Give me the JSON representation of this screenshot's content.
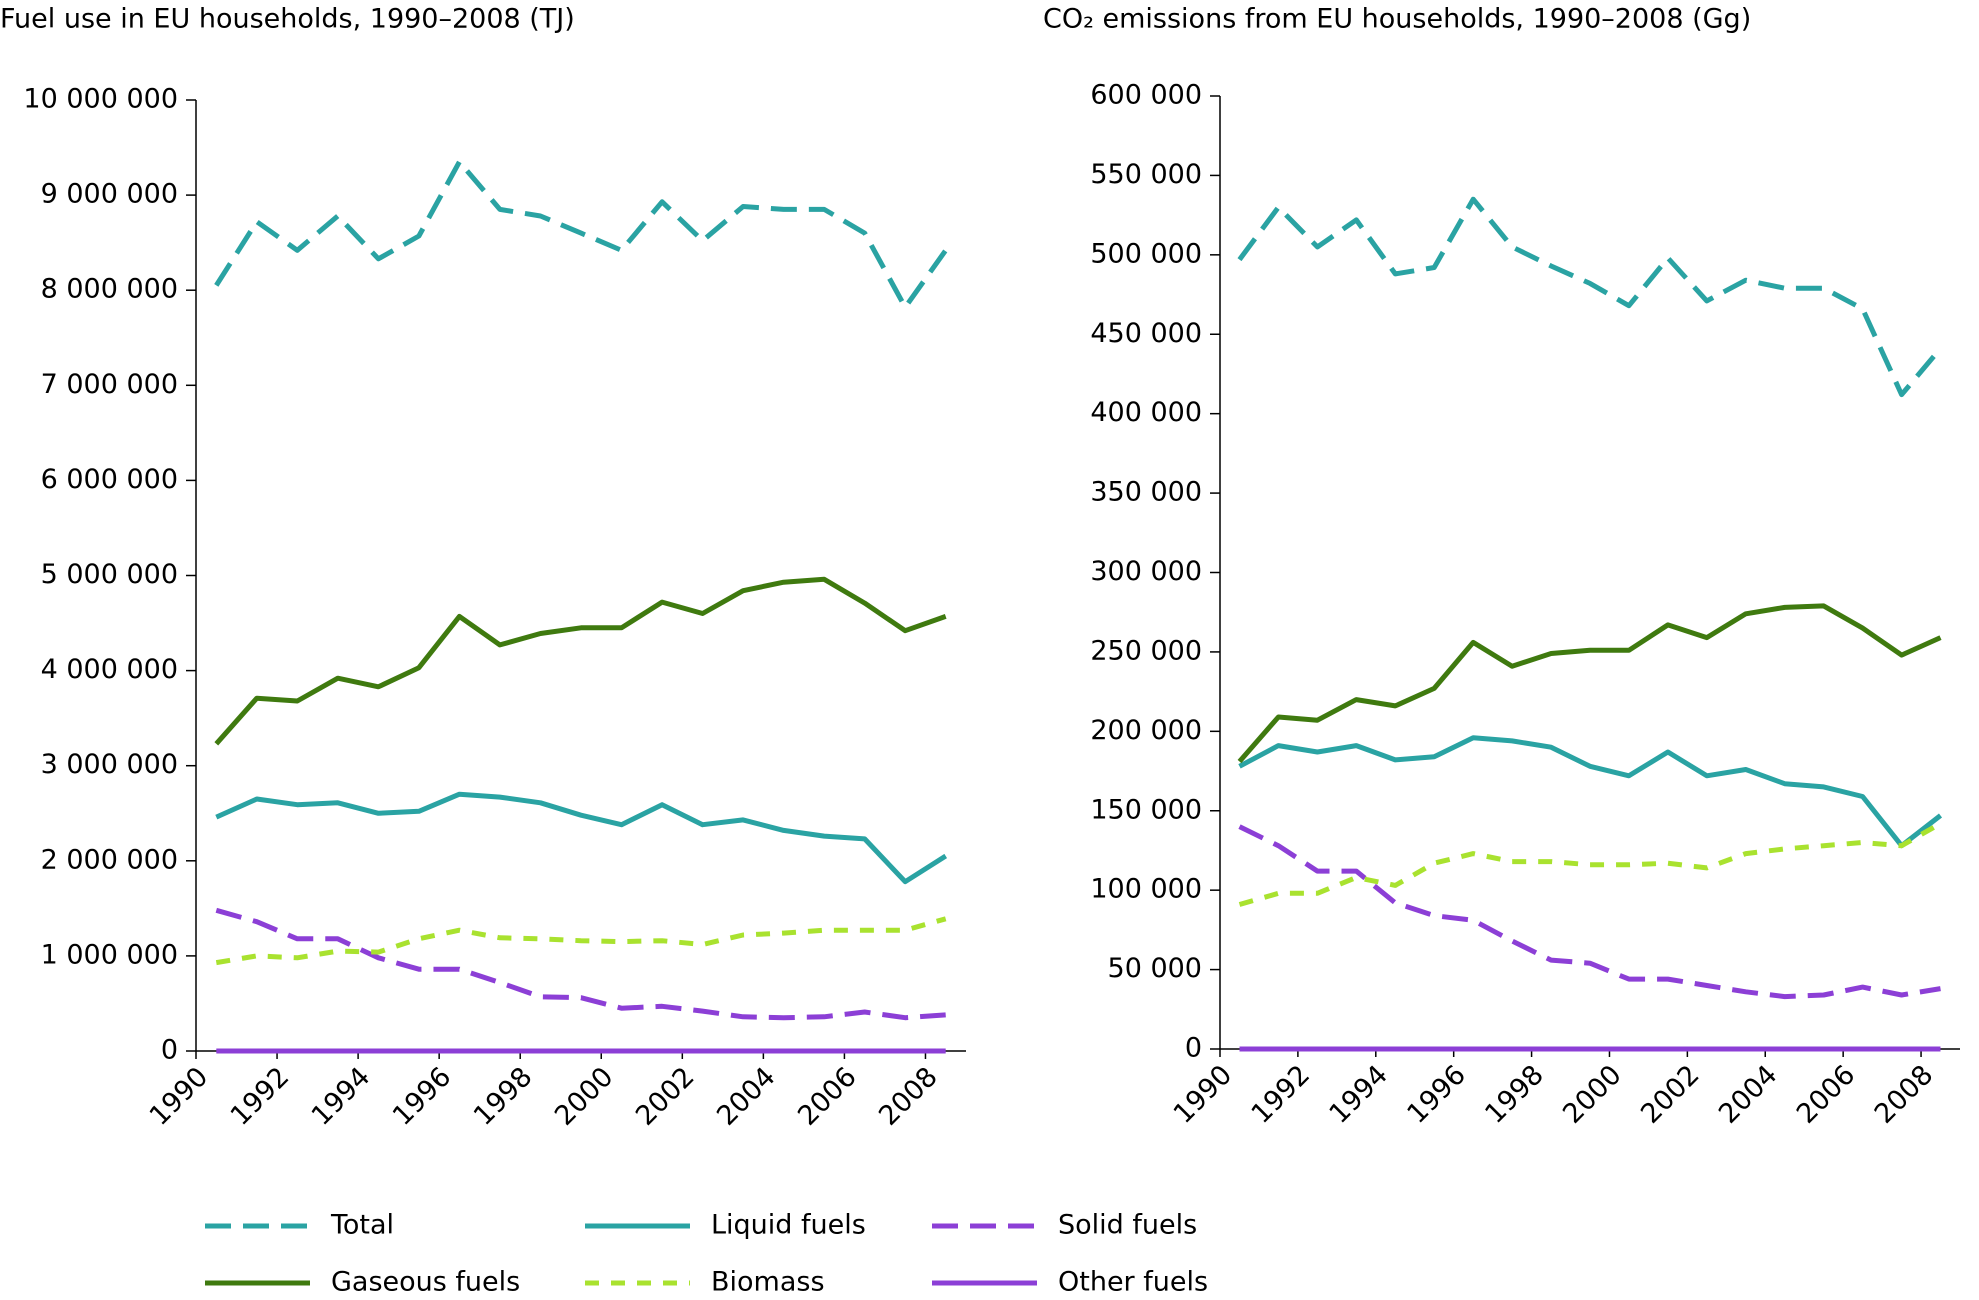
{
  "chart_data": [
    {
      "type": "line",
      "title": "Fuel use in EU households, 1990–2008 (TJ)",
      "categories": [
        "1990",
        null,
        "1992",
        null,
        "1994",
        null,
        "1996",
        null,
        "1998",
        null,
        "2000",
        null,
        "2002",
        null,
        "2004",
        null,
        "2006",
        null,
        "2008"
      ],
      "ylim": [
        0,
        10000000
      ],
      "yticks": [
        0,
        {
          "value": 1000000,
          "label": "1 000 000"
        },
        {
          "value": 2000000,
          "label": "2 000 000"
        },
        {
          "value": 3000000,
          "label": "3 000 000"
        },
        {
          "value": 4000000,
          "label": "4 000 000"
        },
        {
          "value": 5000000,
          "label": "5 000 000"
        },
        {
          "value": 6000000,
          "label": "6 000 000"
        },
        {
          "value": 7000000,
          "label": "7 000 000"
        },
        {
          "value": 8000000,
          "label": "8 000 000"
        },
        {
          "value": 9000000,
          "label": "9 000 000"
        },
        {
          "value": 10000000,
          "label": "10 000 000"
        }
      ],
      "series": [
        {
          "name": "Total",
          "color": "#2aa3a3",
          "style": "dashed",
          "values": [
            8050000,
            8720000,
            8420000,
            8780000,
            8330000,
            8570000,
            9350000,
            8850000,
            8780000,
            8600000,
            8420000,
            8930000,
            8520000,
            8880000,
            8850000,
            8850000,
            8600000,
            7820000,
            8420000
          ]
        },
        {
          "name": "Liquid fuels",
          "color": "#2aa3a3",
          "style": "solid",
          "values": [
            2460000,
            2650000,
            2590000,
            2610000,
            2500000,
            2520000,
            2700000,
            2670000,
            2610000,
            2480000,
            2380000,
            2590000,
            2380000,
            2430000,
            2320000,
            2260000,
            2230000,
            1780000,
            2050000
          ]
        },
        {
          "name": "Solid fuels",
          "color": "#8c3fd6",
          "style": "dashed",
          "values": [
            1480000,
            1360000,
            1180000,
            1180000,
            980000,
            860000,
            860000,
            720000,
            570000,
            560000,
            450000,
            470000,
            420000,
            360000,
            350000,
            360000,
            410000,
            350000,
            380000
          ]
        },
        {
          "name": "Gaseous fuels",
          "color": "#3f7a0f",
          "style": "solid",
          "values": [
            3230000,
            3710000,
            3680000,
            3920000,
            3830000,
            4030000,
            4570000,
            4270000,
            4390000,
            4450000,
            4450000,
            4720000,
            4600000,
            4840000,
            4930000,
            4960000,
            4710000,
            4420000,
            4570000
          ]
        },
        {
          "name": "Biomass",
          "color": "#a9e22f",
          "style": "dotted",
          "values": [
            930000,
            1000000,
            980000,
            1050000,
            1040000,
            1180000,
            1270000,
            1190000,
            1180000,
            1160000,
            1150000,
            1160000,
            1120000,
            1220000,
            1240000,
            1270000,
            1270000,
            1270000,
            1390000
          ]
        },
        {
          "name": "Other fuels",
          "color": "#8c3fd6",
          "style": "solid",
          "values": [
            0,
            0,
            0,
            0,
            0,
            0,
            0,
            0,
            0,
            0,
            0,
            0,
            0,
            0,
            0,
            0,
            0,
            0,
            0
          ]
        }
      ]
    },
    {
      "type": "line",
      "title": "CO₂ emissions from EU households, 1990–2008 (Gg)",
      "categories": [
        "1990",
        null,
        "1992",
        null,
        "1994",
        null,
        "1996",
        null,
        "1998",
        null,
        "2000",
        null,
        "2002",
        null,
        "2004",
        null,
        "2006",
        null,
        "2008"
      ],
      "ylim": [
        0,
        600000
      ],
      "yticks": [
        0,
        {
          "value": 50000,
          "label": "50 000"
        },
        {
          "value": 100000,
          "label": "100 000"
        },
        {
          "value": 150000,
          "label": "150 000"
        },
        {
          "value": 200000,
          "label": "200 000"
        },
        {
          "value": 250000,
          "label": "250 000"
        },
        {
          "value": 300000,
          "label": "300 000"
        },
        {
          "value": 350000,
          "label": "350 000"
        },
        {
          "value": 400000,
          "label": "400 000"
        },
        {
          "value": 450000,
          "label": "450 000"
        },
        {
          "value": 500000,
          "label": "500 000"
        },
        {
          "value": 550000,
          "label": "550 000"
        },
        {
          "value": 600000,
          "label": "600 000"
        }
      ],
      "series": [
        {
          "color": "#2aa3a3",
          "style": "dashed",
          "values": [
            497000,
            530000,
            505000,
            522000,
            488000,
            492000,
            535000,
            505000,
            493000,
            482000,
            468000,
            498000,
            471000,
            484000,
            479000,
            479000,
            466000,
            412000,
            441000
          ]
        },
        {
          "color": "#2aa3a3",
          "style": "solid",
          "values": [
            178000,
            191000,
            187000,
            191000,
            182000,
            184000,
            196000,
            194000,
            190000,
            178000,
            172000,
            187000,
            172000,
            176000,
            167000,
            165000,
            159000,
            128000,
            147000
          ]
        },
        {
          "color": "#8c3fd6",
          "style": "dashed",
          "values": [
            140000,
            128000,
            112000,
            112000,
            92000,
            84000,
            81000,
            68000,
            56000,
            54000,
            44000,
            44000,
            40000,
            36000,
            33000,
            34000,
            39000,
            34000,
            38000
          ]
        },
        {
          "color": "#3f7a0f",
          "style": "solid",
          "values": [
            181000,
            209000,
            207000,
            220000,
            216000,
            227000,
            256000,
            241000,
            249000,
            251000,
            251000,
            267000,
            259000,
            274000,
            278000,
            279000,
            265000,
            248000,
            259000
          ]
        },
        {
          "color": "#a9e22f",
          "style": "dotted",
          "values": [
            91000,
            98000,
            98000,
            108000,
            103000,
            117000,
            123000,
            118000,
            118000,
            116000,
            116000,
            117000,
            114000,
            123000,
            126000,
            128000,
            130000,
            128000,
            142000
          ]
        },
        {
          "color": "#8c3fd6",
          "style": "solid",
          "values": [
            0,
            0,
            0,
            0,
            0,
            0,
            0,
            0,
            0,
            0,
            0,
            0,
            0,
            0,
            0,
            0,
            0,
            0,
            0
          ]
        }
      ]
    }
  ]
}
